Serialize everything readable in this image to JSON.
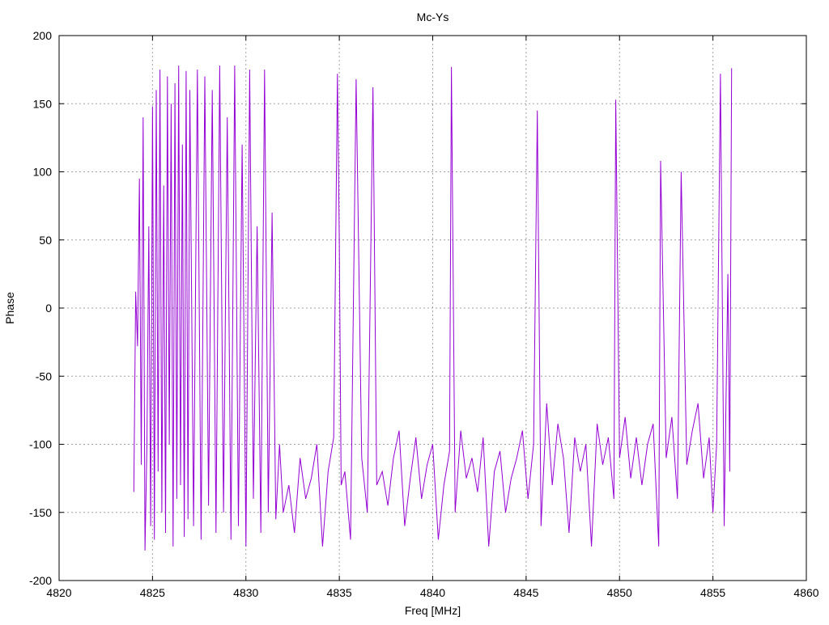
{
  "chart_data": {
    "type": "line",
    "title": "Mc-Ys",
    "xlabel": "Freq [MHz]",
    "ylabel": "Phase",
    "xlim": [
      4820,
      4860
    ],
    "ylim": [
      -200,
      200
    ],
    "xticks": [
      4820,
      4825,
      4830,
      4835,
      4840,
      4845,
      4850,
      4855,
      4860
    ],
    "yticks": [
      -200,
      -150,
      -100,
      -50,
      0,
      50,
      100,
      150,
      200
    ],
    "xtick_labels": [
      "4820",
      "4825",
      "4830",
      "4835",
      "4840",
      "4845",
      "4850",
      "4855",
      "4860"
    ],
    "ytick_labels": [
      "-200",
      "-150",
      "-100",
      "-50",
      "0",
      "50",
      "100",
      "150",
      "200"
    ],
    "grid": true,
    "line_color": "#9400d3",
    "x_range_of_data": [
      4824,
      4856
    ],
    "series": [
      {
        "x": [
          4824.0,
          4824.1,
          4824.2,
          4824.3,
          4824.4,
          4824.5,
          4824.6,
          4824.7,
          4824.8,
          4824.9,
          4825.0,
          4825.1,
          4825.2,
          4825.3,
          4825.4,
          4825.5,
          4825.6,
          4825.7,
          4825.8,
          4825.9,
          4826.0,
          4826.1,
          4826.2,
          4826.3,
          4826.4,
          4826.5,
          4826.6,
          4826.7,
          4826.8,
          4826.9,
          4827.0,
          4827.2,
          4827.4,
          4827.6,
          4827.8,
          4828.0,
          4828.2,
          4828.4,
          4828.6,
          4828.8,
          4829.0,
          4829.2,
          4829.4,
          4829.6,
          4829.8,
          4830.0,
          4830.2,
          4830.4,
          4830.6,
          4830.8,
          4831.0,
          4831.2,
          4831.4,
          4831.6,
          4831.8,
          4832.0,
          4832.3,
          4832.6,
          4832.9,
          4833.2,
          4833.5,
          4833.8,
          4834.1,
          4834.4,
          4834.7,
          4834.9,
          4835.0,
          4835.1,
          4835.3,
          4835.6,
          4835.9,
          4836.2,
          4836.5,
          4836.8,
          4837.0,
          4837.3,
          4837.6,
          4837.9,
          4838.2,
          4838.5,
          4838.8,
          4839.1,
          4839.4,
          4839.7,
          4840.0,
          4840.3,
          4840.6,
          4840.9,
          4841.0,
          4841.2,
          4841.5,
          4841.8,
          4842.1,
          4842.4,
          4842.7,
          4843.0,
          4843.3,
          4843.6,
          4843.9,
          4844.2,
          4844.5,
          4844.8,
          4845.1,
          4845.4,
          4845.6,
          4845.8,
          4846.1,
          4846.4,
          4846.7,
          4847.0,
          4847.3,
          4847.6,
          4847.9,
          4848.2,
          4848.5,
          4848.8,
          4849.1,
          4849.4,
          4849.7,
          4849.8,
          4850.0,
          4850.3,
          4850.6,
          4850.9,
          4851.2,
          4851.5,
          4851.8,
          4852.1,
          4852.2,
          4852.5,
          4852.8,
          4853.1,
          4853.3,
          4853.6,
          4853.9,
          4854.2,
          4854.5,
          4854.8,
          4855.0,
          4855.2,
          4855.4,
          4855.6,
          4855.8,
          4855.9,
          4856.0
        ],
        "y": [
          -135,
          12,
          -28,
          95,
          -115,
          140,
          -178,
          -100,
          60,
          -160,
          148,
          -170,
          160,
          -120,
          175,
          -150,
          90,
          -165,
          170,
          -100,
          150,
          -175,
          165,
          -140,
          178,
          -130,
          120,
          -168,
          174,
          -155,
          160,
          -160,
          175,
          -170,
          170,
          -145,
          160,
          -165,
          178,
          -150,
          140,
          -170,
          178,
          -160,
          120,
          -175,
          175,
          -140,
          60,
          -165,
          175,
          -150,
          70,
          -155,
          -100,
          -150,
          -130,
          -165,
          -110,
          -140,
          -125,
          -100,
          -175,
          -120,
          -95,
          172,
          50,
          -130,
          -120,
          -170,
          168,
          -110,
          -150,
          162,
          -130,
          -120,
          -145,
          -110,
          -90,
          -160,
          -125,
          -95,
          -140,
          -115,
          -100,
          -170,
          -130,
          -105,
          177,
          -150,
          -90,
          -125,
          -110,
          -135,
          -95,
          -175,
          -120,
          -105,
          -150,
          -125,
          -110,
          -90,
          -140,
          -100,
          145,
          -160,
          -70,
          -130,
          -85,
          -110,
          -165,
          -95,
          -120,
          -100,
          -175,
          -85,
          -115,
          -95,
          -140,
          153,
          -110,
          -80,
          -125,
          -95,
          -130,
          -100,
          -85,
          -175,
          108,
          -110,
          -80,
          -140,
          100,
          -115,
          -90,
          -70,
          -125,
          -95,
          -150,
          -100,
          172,
          -160,
          25,
          -120,
          176
        ]
      }
    ]
  }
}
